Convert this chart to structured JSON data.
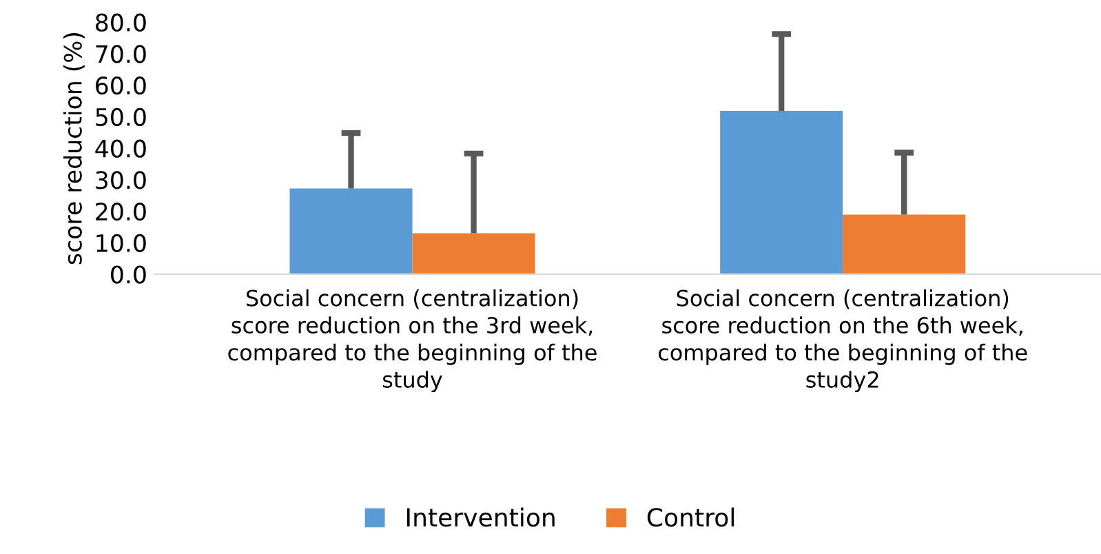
{
  "chart_data": {
    "type": "bar",
    "ylabel": "score reduction (%)",
    "categories": [
      "Social concern (centralization) score reduction on the 3rd week, compared to the beginning of the study",
      "Social concern (centralization) score reduction on the 6th week, compared to the beginning of the study2"
    ],
    "series": [
      {
        "name": "Intervention",
        "color": "#5b9bd5",
        "values": [
          27.2,
          51.8
        ],
        "errors": [
          [
            27.2,
            44.8
          ],
          [
            51.8,
            76.2
          ]
        ]
      },
      {
        "name": "Control",
        "color": "#ed7d31",
        "values": [
          13.0,
          18.9
        ],
        "errors": [
          [
            13.0,
            38.3
          ],
          [
            18.9,
            38.6
          ]
        ]
      }
    ],
    "ylim": [
      0,
      80
    ],
    "yticks": [
      {
        "value": 0,
        "label": "0.0"
      },
      {
        "value": 10,
        "label": "10.0"
      },
      {
        "value": 20,
        "label": "20.0"
      },
      {
        "value": 30,
        "label": "30.0"
      },
      {
        "value": 40,
        "label": "40.0"
      },
      {
        "value": 50,
        "label": "50.0"
      },
      {
        "value": 60,
        "label": "60.0"
      },
      {
        "value": 70,
        "label": "70.0"
      },
      {
        "value": 80,
        "label": "80.0"
      }
    ],
    "grid": false,
    "legend": "bottom"
  }
}
